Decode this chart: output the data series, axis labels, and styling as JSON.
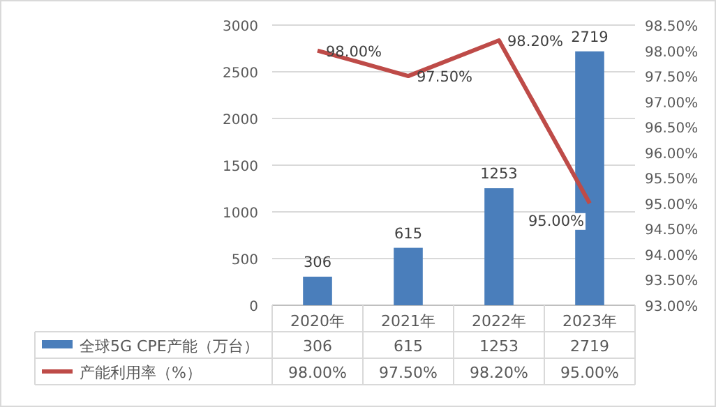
{
  "chart_data": {
    "type": "bar",
    "categories": [
      "2020年",
      "2021年",
      "2022年",
      "2023年"
    ],
    "series": [
      {
        "name": "全球5G CPE产能（万台）",
        "color": "#4a7ebb",
        "values": [
          306,
          615,
          1253,
          2719
        ],
        "value_labels": [
          "306",
          "615",
          "1253",
          "2719"
        ]
      },
      {
        "name": "产能利用率（%）",
        "type": "line",
        "axis": "y2",
        "color": "#be4b48",
        "values": [
          98.0,
          97.5,
          98.2,
          95.0
        ],
        "value_labels": [
          "98.00%",
          "97.50%",
          "98.20%",
          "95.00%"
        ]
      }
    ],
    "ylim": [
      0,
      3000
    ],
    "yticks": [
      0,
      500,
      1000,
      1500,
      2000,
      2500,
      3000
    ],
    "y2lim": [
      93,
      98.5
    ],
    "y2ticks": [
      {
        "value": 93,
        "label": "93.00%"
      },
      {
        "value": 93.5,
        "label": "93.50%"
      },
      {
        "value": 94,
        "label": "94.00%"
      },
      {
        "value": 94.5,
        "label": "94.50%"
      },
      {
        "value": 95,
        "label": "95.00%"
      },
      {
        "value": 95.5,
        "label": "95.50%"
      },
      {
        "value": 96,
        "label": "96.00%"
      },
      {
        "value": 96.5,
        "label": "96.50%"
      },
      {
        "value": 97,
        "label": "97.00%"
      },
      {
        "value": 97.5,
        "label": "97.50%"
      },
      {
        "value": 98,
        "label": "98.00%"
      },
      {
        "value": 98.5,
        "label": "98.50%"
      }
    ],
    "grid": "y",
    "legend": "bottom",
    "line_style": "solid",
    "marker": "none"
  }
}
